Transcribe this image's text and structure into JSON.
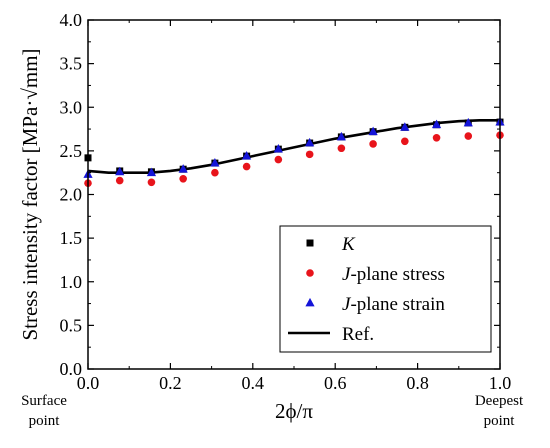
{
  "chart_data": {
    "type": "scatter",
    "xlabel": "2ϕ/π",
    "ylabel": "Stress intensity factor [MPa·√mm]",
    "xlim": [
      0.0,
      1.0
    ],
    "ylim": [
      0.0,
      4.0
    ],
    "x_ticks": [
      "0.0",
      "0.2",
      "0.4",
      "0.6",
      "0.8",
      "1.0"
    ],
    "y_ticks": [
      "0.0",
      "0.5",
      "1.0",
      "1.5",
      "2.0",
      "2.5",
      "3.0",
      "3.5",
      "4.0"
    ],
    "annotations": {
      "left_line1": "Surface",
      "left_line2": "point",
      "right_line1": "Deepest",
      "right_line2": "point"
    },
    "legend_position": "bottom-right",
    "series": [
      {
        "name": "K",
        "name_italic": "K",
        "name_rest": "",
        "marker": "square",
        "color": "#000000",
        "x": [
          0.0,
          0.077,
          0.154,
          0.231,
          0.308,
          0.385,
          0.462,
          0.538,
          0.615,
          0.692,
          0.769,
          0.846,
          0.923,
          1.0
        ],
        "y": [
          2.42,
          2.27,
          2.26,
          2.29,
          2.36,
          2.44,
          2.52,
          2.59,
          2.66,
          2.72,
          2.77,
          2.8,
          2.82,
          2.83
        ]
      },
      {
        "name": "J-plane stress",
        "name_italic": "J",
        "name_rest": "-plane stress",
        "marker": "circle",
        "color": "#e8141b",
        "x": [
          0.0,
          0.077,
          0.154,
          0.231,
          0.308,
          0.385,
          0.462,
          0.538,
          0.615,
          0.692,
          0.769,
          0.846,
          0.923,
          1.0
        ],
        "y": [
          2.13,
          2.16,
          2.14,
          2.18,
          2.25,
          2.32,
          2.4,
          2.46,
          2.53,
          2.58,
          2.61,
          2.65,
          2.67,
          2.68
        ]
      },
      {
        "name": "J-plane strain",
        "name_italic": "J",
        "name_rest": "-plane strain",
        "marker": "triangle",
        "color": "#1414d8",
        "x": [
          0.0,
          0.077,
          0.154,
          0.231,
          0.308,
          0.385,
          0.462,
          0.538,
          0.615,
          0.692,
          0.769,
          0.846,
          0.923,
          1.0
        ],
        "y": [
          2.23,
          2.26,
          2.25,
          2.29,
          2.36,
          2.44,
          2.52,
          2.59,
          2.66,
          2.72,
          2.77,
          2.8,
          2.82,
          2.83
        ]
      },
      {
        "name": "Ref.",
        "name_italic": "",
        "name_rest": "Ref.",
        "marker": "line",
        "color": "#000000",
        "x": [
          0.0,
          0.05,
          0.1,
          0.15,
          0.2,
          0.25,
          0.3,
          0.35,
          0.4,
          0.45,
          0.5,
          0.55,
          0.6,
          0.65,
          0.7,
          0.75,
          0.8,
          0.85,
          0.9,
          0.95,
          1.0
        ],
        "y": [
          2.27,
          2.25,
          2.25,
          2.25,
          2.27,
          2.3,
          2.34,
          2.39,
          2.44,
          2.49,
          2.54,
          2.59,
          2.64,
          2.68,
          2.72,
          2.76,
          2.79,
          2.82,
          2.84,
          2.85,
          2.85
        ]
      }
    ]
  }
}
